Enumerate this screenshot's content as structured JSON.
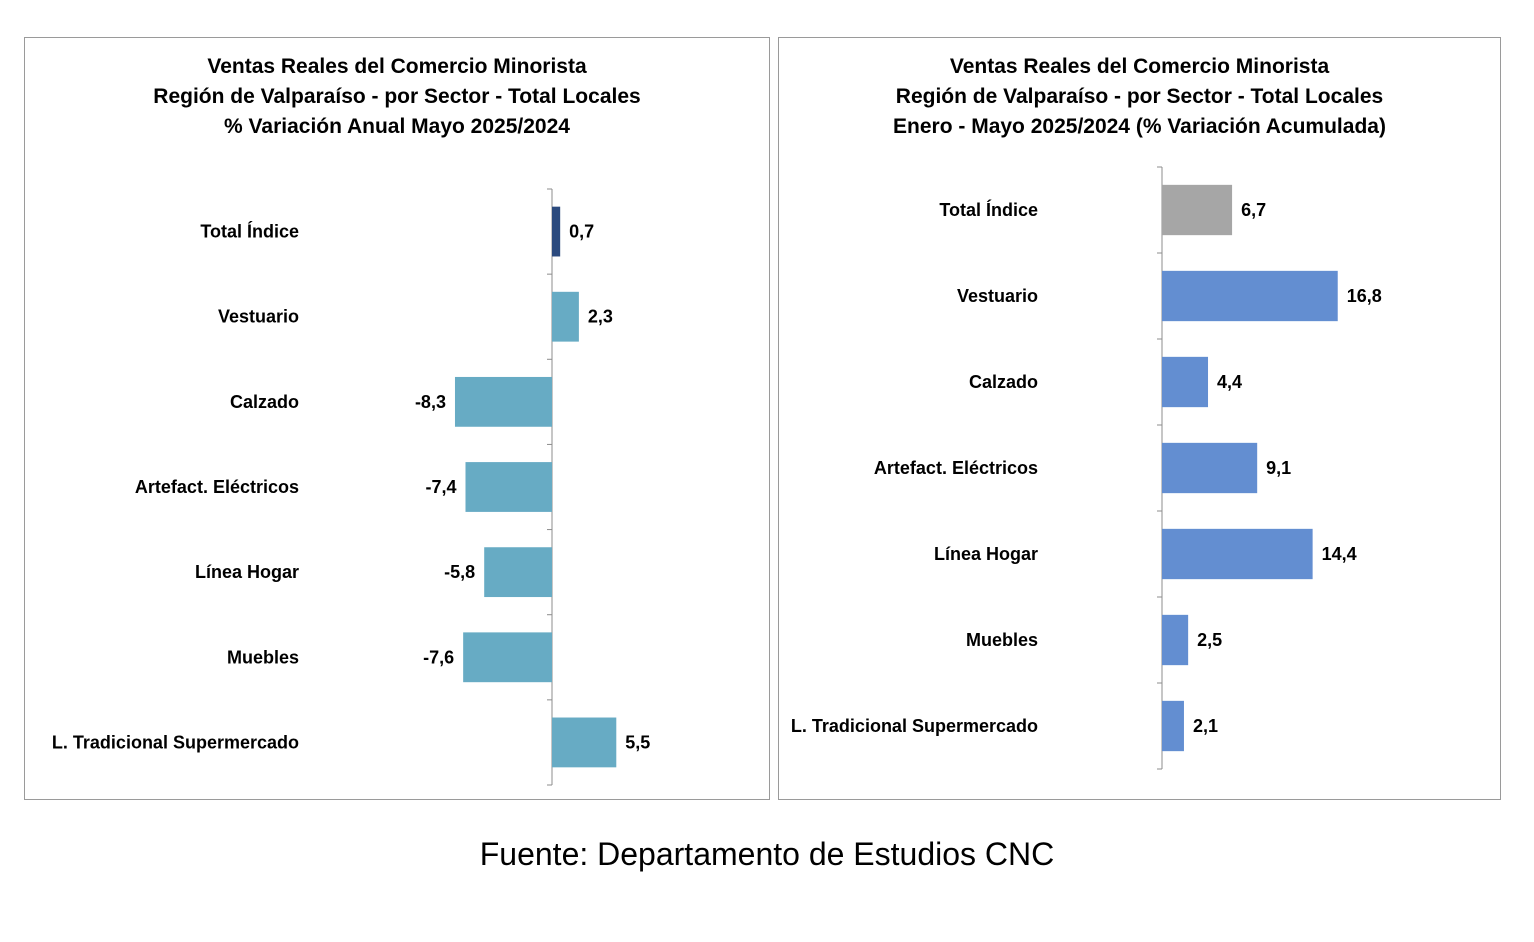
{
  "chart_data": [
    {
      "type": "bar",
      "orientation": "horizontal",
      "title_lines": [
        "Ventas Reales del Comercio Minorista",
        "Región de Valparaíso - por Sector - Total Locales",
        "% Variación Anual Mayo 2025/2024"
      ],
      "categories": [
        "Total Índice",
        "Vestuario",
        "Calzado",
        "Artefact. Eléctricos",
        "Línea Hogar",
        "Muebles",
        "L. Tradicional Supermercado"
      ],
      "values": [
        0.7,
        2.3,
        -8.3,
        -7.4,
        -5.8,
        -7.6,
        5.5
      ],
      "value_labels": [
        "0,7",
        "2,3",
        "-8,3",
        "-7,4",
        "-5,8",
        "-7,6",
        "5,5"
      ],
      "bar_colors": [
        "#2b4a7e",
        "#67abc4",
        "#67abc4",
        "#67abc4",
        "#67abc4",
        "#67abc4",
        "#67abc4"
      ],
      "xlim": [
        -8.3,
        5.5
      ],
      "grid": false,
      "legend": "none"
    },
    {
      "type": "bar",
      "orientation": "horizontal",
      "title_lines": [
        "Ventas Reales del Comercio Minorista",
        "Región de Valparaíso - por Sector  - Total Locales",
        "Enero - Mayo  2025/2024 (% Variación Acumulada)"
      ],
      "categories": [
        "Total Índice",
        "Vestuario",
        "Calzado",
        "Artefact. Eléctricos",
        "Línea Hogar",
        "Muebles",
        "L. Tradicional Supermercado"
      ],
      "values": [
        6.7,
        16.8,
        4.4,
        9.1,
        14.4,
        2.5,
        2.1
      ],
      "value_labels": [
        "6,7",
        "16,8",
        "4,4",
        "9,1",
        "14,4",
        "2,5",
        "2,1"
      ],
      "bar_colors": [
        "#a6a6a6",
        "#638ed1",
        "#638ed1",
        "#638ed1",
        "#638ed1",
        "#638ed1",
        "#638ed1"
      ],
      "xlim": [
        0,
        16.8
      ],
      "grid": false,
      "legend": "none"
    }
  ],
  "source_text": "Fuente: Departamento de Estudios CNC"
}
